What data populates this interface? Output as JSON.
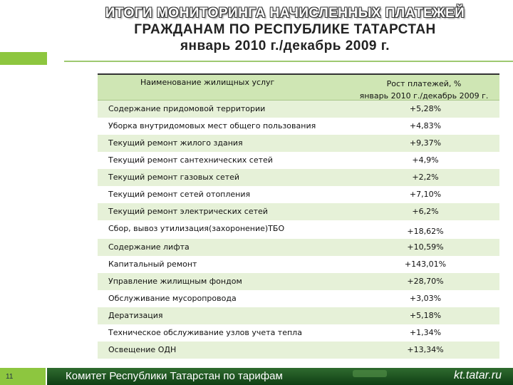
{
  "title": {
    "line1": "ИТОГИ МОНИТОРИНГА НАЧИСЛЕННЫХ ПЛАТЕЖЕЙ",
    "line2": "ГРАЖДАНАМ ПО РЕСПУБЛИКЕ ТАТАРСТАН",
    "line3": "январь 2010 г./декабрь 2009 г."
  },
  "table": {
    "header_name": "Наименование жилищных услуг",
    "header_growth_line1": "Рост платежей, %",
    "header_growth_line2": "январь 2010 г./декабрь 2009 г.",
    "rows": [
      {
        "name": "Содержание придомовой территории",
        "value": "+5,28%"
      },
      {
        "name": "Уборка внутридомовых мест общего пользования",
        "value": "+4,83%"
      },
      {
        "name": "Текущий ремонт жилого здания",
        "value": "+9,37%"
      },
      {
        "name": "Текущий ремонт сантехнических сетей",
        "value": "+4,9%"
      },
      {
        "name": "Текущий ремонт газовых сетей",
        "value": "+2,2%"
      },
      {
        "name": "Текущий ремонт сетей отопления",
        "value": "+7,10%"
      },
      {
        "name": "Текущий ремонт электрических сетей",
        "value": "+6,2%"
      },
      {
        "name": "Сбор, вывоз утилизация(захоронение)ТБО",
        "value": "+18,62%"
      },
      {
        "name": "Содержание лифта",
        "value": "+10,59%"
      },
      {
        "name": "Капитальный ремонт",
        "value": "+143,01%"
      },
      {
        "name": "Управление жилищным фондом",
        "value": "+28,70%"
      },
      {
        "name": "Обслуживание мусоропровода",
        "value": "+3,03%"
      },
      {
        "name": "Дератизация",
        "value": "+5,18%"
      },
      {
        "name": "Техническое обслуживание узлов учета тепла",
        "value": "+1,34%"
      },
      {
        "name": "Освещение ОДН",
        "value": "+13,34%"
      }
    ]
  },
  "footer": {
    "page_number": "11",
    "organization": "Комитет Республики Татарстан по тарифам",
    "website": "kt.tatar.ru"
  },
  "colors": {
    "accent_green": "#8dc63f",
    "row_tint": "#e6f1d8",
    "header_bg": "#cfe6b4",
    "footer_dark": "#1f5a24"
  }
}
